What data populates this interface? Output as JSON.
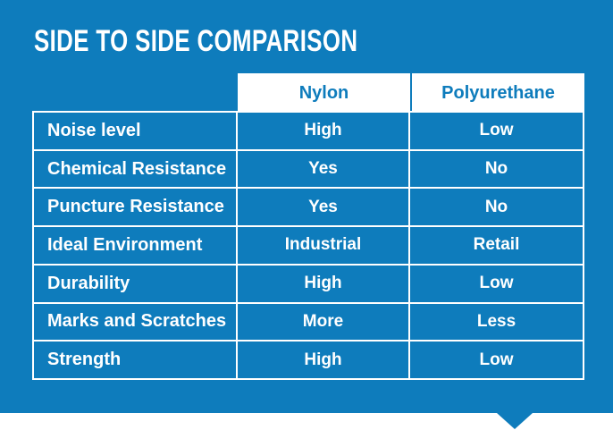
{
  "chart_data": {
    "type": "table",
    "title": "SIDE TO SIDE COMPARISON",
    "columns": [
      "",
      "Nylon",
      "Polyurethane"
    ],
    "rows": [
      [
        "Noise level",
        "High",
        "Low"
      ],
      [
        "Chemical Resistance",
        "Yes",
        "No"
      ],
      [
        "Puncture Resistance",
        "Yes",
        "No"
      ],
      [
        "Ideal Environment",
        "Industrial",
        "Retail"
      ],
      [
        "Durability",
        "High",
        "Low"
      ],
      [
        "Marks and Scratches",
        "More",
        "Less"
      ],
      [
        "Strength",
        "High",
        "Low"
      ]
    ],
    "layout": {
      "header_background": "#ffffff",
      "body_cell_background": "#0e7cbc",
      "grid": "on",
      "pointer": "down-triangle bottom-right"
    }
  },
  "colors": {
    "accent_blue": "#0e7cbc",
    "text_on_blue": "#ffffff",
    "header_text_blue": "#0e7cbc"
  }
}
